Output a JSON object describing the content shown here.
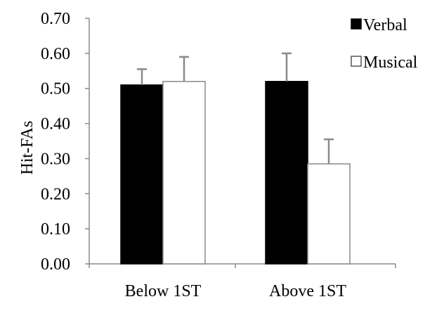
{
  "chart_data": {
    "type": "bar",
    "title": "",
    "xlabel": "",
    "ylabel": "Hit-FAs",
    "ylim": [
      0,
      0.7
    ],
    "yticks": [
      "0.00",
      "0.10",
      "0.20",
      "0.30",
      "0.40",
      "0.50",
      "0.60",
      "0.70"
    ],
    "categories": [
      "Below 1ST",
      "Above 1ST"
    ],
    "series": [
      {
        "name": "Verbal",
        "color": "#000000",
        "values": [
          0.51,
          0.52
        ],
        "errors": [
          0.045,
          0.08
        ]
      },
      {
        "name": "Musical",
        "color": "#ffffff",
        "values": [
          0.52,
          0.285
        ],
        "errors": [
          0.07,
          0.07
        ]
      }
    ],
    "grid": false,
    "legend": "top-right"
  }
}
